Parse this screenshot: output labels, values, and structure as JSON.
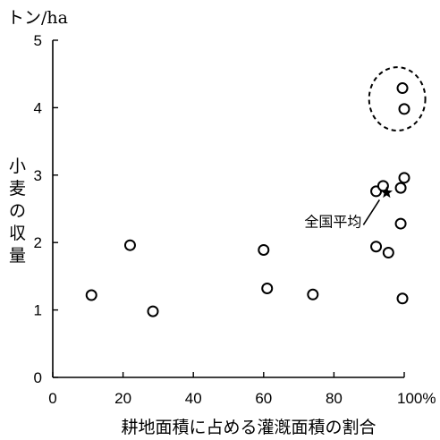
{
  "chart_data": {
    "type": "scatter",
    "title": "",
    "xlabel": "耕地面積に占める灌漑面積の割合",
    "ylabel": "小麦の収量",
    "y_unit": "トン/ha",
    "x_unit_suffix": "%",
    "xlim": [
      0,
      100
    ],
    "ylim": [
      0,
      5
    ],
    "xticks": [
      0,
      20,
      40,
      60,
      80,
      100
    ],
    "xtick_labels": [
      "0",
      "20",
      "40",
      "60",
      "80",
      "100%"
    ],
    "yticks": [
      0,
      1,
      2,
      3,
      4,
      5
    ],
    "ytick_labels": [
      "0",
      "1",
      "2",
      "3",
      "4",
      "5"
    ],
    "grid": false,
    "points": [
      {
        "x": 11,
        "y": 1.22
      },
      {
        "x": 22,
        "y": 1.96
      },
      {
        "x": 28.5,
        "y": 0.98
      },
      {
        "x": 60,
        "y": 1.89
      },
      {
        "x": 61,
        "y": 1.32
      },
      {
        "x": 74,
        "y": 1.23
      },
      {
        "x": 92,
        "y": 2.76
      },
      {
        "x": 94,
        "y": 2.84
      },
      {
        "x": 92,
        "y": 1.94
      },
      {
        "x": 95.5,
        "y": 1.85
      },
      {
        "x": 99,
        "y": 2.81
      },
      {
        "x": 100,
        "y": 2.96
      },
      {
        "x": 99,
        "y": 2.28
      },
      {
        "x": 99.5,
        "y": 1.17
      },
      {
        "x": 99.5,
        "y": 4.29
      },
      {
        "x": 100,
        "y": 3.98
      }
    ],
    "highlight": {
      "x": 95,
      "y": 2.74,
      "marker": "star",
      "label": "全国平均"
    },
    "circled_region": {
      "x_center": 98,
      "y_center": 4.13,
      "x_radius": 8,
      "y_radius": 0.47
    }
  }
}
